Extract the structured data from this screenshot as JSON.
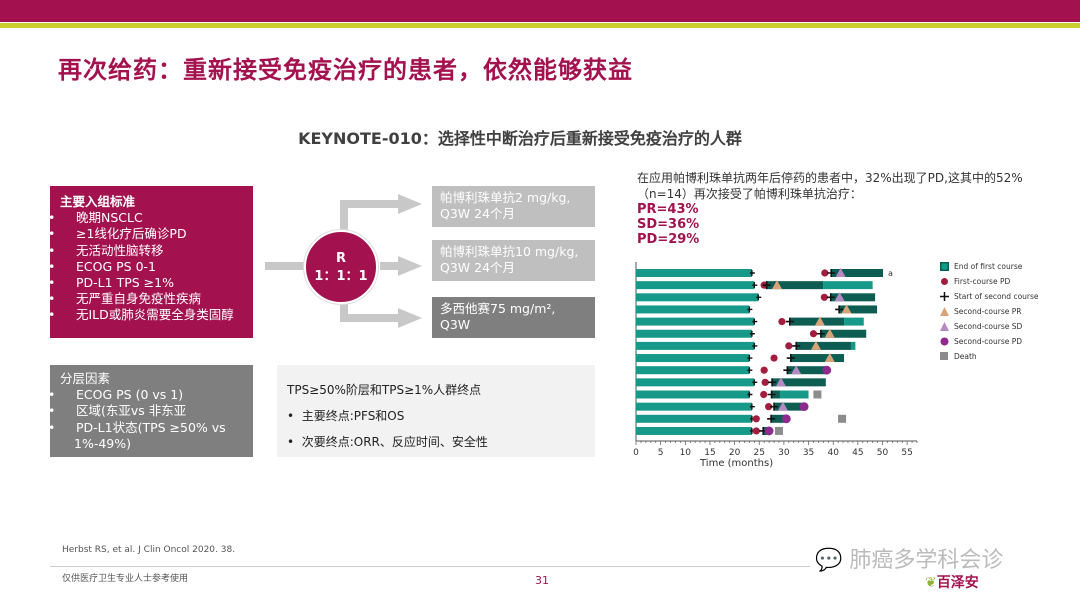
{
  "header": {
    "title": "再次给药：重新接受免疫治疗的患者，依然能够获益",
    "subtitle": "KEYNOTE-010：选择性中断治疗后重新接受免疫治疗的人群"
  },
  "inclusion": {
    "heading": "主要入组标准",
    "items": [
      "晚期NSCLC",
      "≥1线化疗后确诊PD",
      "无活动性脑转移",
      "ECOG PS 0-1",
      "PD-L1 TPS ≥1%",
      "无严重自身免疫性疾病",
      "无ILD或肺炎需要全身类固醇"
    ]
  },
  "stratification": {
    "heading": "分层因素",
    "items": [
      "ECOG PS (0 vs 1)",
      "区域(东亚vs 非东亚",
      "PD-L1状态(TPS ≥50% vs 1%-49%)"
    ]
  },
  "randomization": {
    "label": "R",
    "ratio": "1：1：1"
  },
  "arms": [
    {
      "line1": "帕博利珠单抗2 mg/kg,",
      "line2": "Q3W 24个月"
    },
    {
      "line1": "帕博利珠单抗10 mg/kg,",
      "line2": "Q3W 24个月"
    },
    {
      "line1": "多西他赛75 mg/m²,",
      "line2": "Q3W"
    }
  ],
  "endpoints": {
    "heading": "TPS≥50%阶层和TPS≥1%人群终点",
    "primary": "主要终点:PFS和OS",
    "secondary": "次要终点:ORR、反应时间、安全性"
  },
  "description": {
    "text": "在应用帕博利珠单抗两年后停药的患者中，32%出现了PD,这其中的52%（n=14）再次接受了帕博利珠单抗治疗：",
    "results": [
      "PR=43%",
      "SD=36%",
      "PD=29%"
    ]
  },
  "colors": {
    "brand": "#a3124f",
    "first": "#17998a",
    "second": "#0e5d52",
    "pd": "#a31d3f",
    "pr": "#d9a37a",
    "sd": "#b48ac3",
    "spd": "#8e2a8e",
    "death": "#8c8c8c"
  },
  "chart_data": {
    "type": "swimmer",
    "xlabel": "Time (months)",
    "xlim": [
      0,
      57
    ],
    "xticks": [
      0,
      5,
      10,
      15,
      20,
      25,
      30,
      35,
      40,
      45,
      50,
      55
    ],
    "legend": [
      "End of first course",
      "First-course PD",
      "Start of second course",
      "Second-course PR",
      "Second-course SD",
      "Second-course PD",
      "Death"
    ],
    "patients": [
      {
        "first": 23.5,
        "pd": 38.3,
        "start2": 39.6,
        "resp": "SD",
        "resp_t": 41.5,
        "dark_end": 50.1,
        "end": 50.1,
        "note": "a"
      },
      {
        "first": 24,
        "pd": 26,
        "start2": 26.5,
        "resp": "PR",
        "resp_t": 28.6,
        "dark_end": 38,
        "end": 48
      },
      {
        "first": 24.8,
        "pd": 38.2,
        "start2": 39.5,
        "resp": "SD",
        "resp_t": 41.3,
        "dark_end": 48.5,
        "end": 48.5
      },
      {
        "first": 23,
        "start2": 41.2,
        "resp": "PR",
        "resp_t": 42.7,
        "dark_end": 48.9,
        "end": 48.9
      },
      {
        "first": 24,
        "pd": 29.6,
        "start2": 31.2,
        "resp": "PR",
        "resp_t": 37.3,
        "dark_end": 42.2,
        "end": 46.2
      },
      {
        "first": 23.5,
        "pd": 36,
        "start2": 37.5,
        "resp": "PR",
        "resp_t": 39.3,
        "dark_end": 46.7,
        "end": 46.7
      },
      {
        "first": 24,
        "pd": 31,
        "start2": 32.5,
        "resp": "PR",
        "resp_t": 36.5,
        "dark_end": 43.6,
        "end": 44.5
      },
      {
        "first": 23,
        "pd": 28,
        "start2": 31.4,
        "resp": "PR",
        "resp_t": 39.3,
        "dark_end": 42.2,
        "end": 42.2
      },
      {
        "first": 23,
        "pd": 26,
        "start2": 30.7,
        "resp": "SD",
        "resp_t": 32.5,
        "spd": 38.7,
        "dark_end": 38.7,
        "end": 38.7
      },
      {
        "first": 24,
        "pd": 26.2,
        "start2": 27.6,
        "resp": "SD",
        "resp_t": 29.4,
        "dark_end": 38.5,
        "end": 38.5
      },
      {
        "first": 23,
        "pd": 25.9,
        "start2": 27.5,
        "dark_end": 29.2,
        "end": 35,
        "death": 36.8
      },
      {
        "first": 23.5,
        "pd": 26.9,
        "start2": 28,
        "resp": "SD",
        "resp_t": 29.8,
        "spd": 34.1,
        "dark_end": 34.1,
        "end": 34.1
      },
      {
        "first": 23.5,
        "pd": 24.4,
        "start2": 27.4,
        "spd": 30.5,
        "dark_end": 30.5,
        "end": 30.5,
        "death": 41.8
      },
      {
        "first": 23.5,
        "pd": 24.4,
        "start2": 25.8,
        "spd": 27,
        "dark_end": 27,
        "end": 27,
        "death": 29
      }
    ]
  },
  "footer": {
    "reference": "Herbst RS, et al. J Clin Oncol 2020. 38.",
    "note": "仅供医疗卫生专业人士参考使用",
    "page": "31",
    "watermark": "肺癌多学科会诊",
    "logo": "百泽安"
  }
}
